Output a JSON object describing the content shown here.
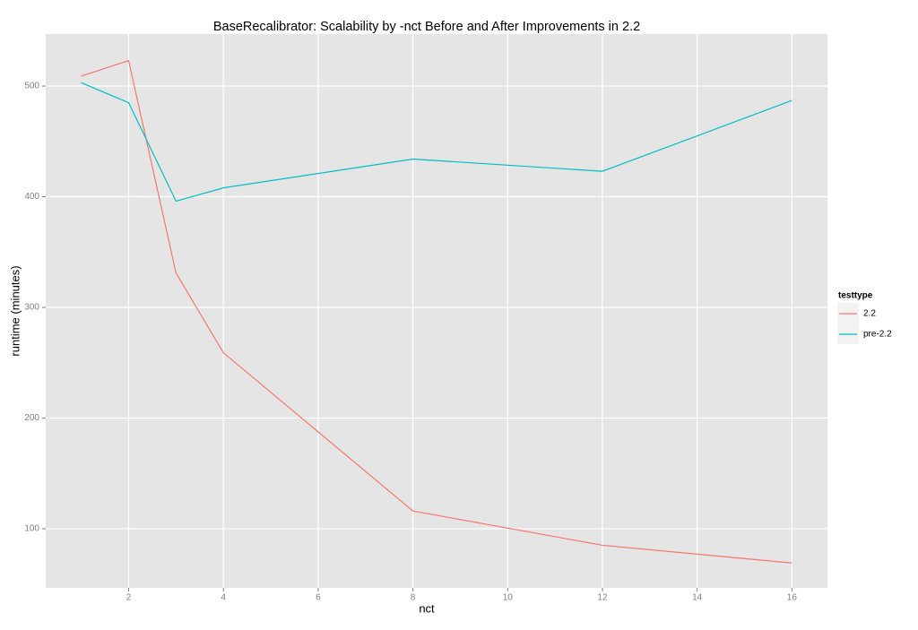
{
  "chart_data": {
    "type": "line",
    "title": "BaseRecalibrator: Scalability by -nct Before and After Improvements in 2.2",
    "x_label": "nct",
    "y_label": "runtime (minutes)",
    "x": [
      1,
      2,
      3,
      4,
      8,
      12,
      16
    ],
    "series": [
      {
        "name": "2.2",
        "color": "#f8766d",
        "values": [
          509,
          523,
          331,
          259,
          116,
          85,
          69
        ]
      },
      {
        "name": "pre-2.2",
        "color": "#00bfc4",
        "values": [
          503,
          485,
          396,
          408,
          434,
          423,
          487
        ]
      }
    ],
    "xlim": [
      0.25,
      16.75
    ],
    "xticks": [
      2,
      4,
      6,
      8,
      10,
      12,
      14,
      16
    ],
    "ylim": [
      46.5,
      547
    ],
    "yticks": [
      100,
      200,
      300,
      400,
      500
    ],
    "grid": true,
    "legend_title": "testtype",
    "legend_position": "right"
  }
}
